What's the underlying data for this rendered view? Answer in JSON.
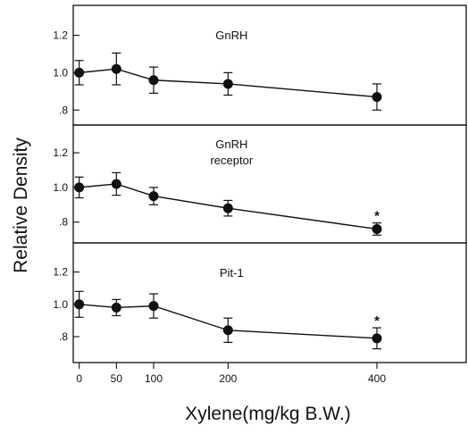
{
  "chart_data": {
    "type": "line",
    "ylabel": "Relative Density",
    "xlabel": "Xylene(mg/kg B.W.)",
    "x": [
      0,
      50,
      100,
      200,
      400
    ],
    "x_ticks": [
      0,
      50,
      100,
      200,
      400
    ],
    "x_tick_labels": [
      "0",
      "50",
      "100",
      "200",
      "400"
    ],
    "xlim": [
      -8,
      520
    ],
    "grid": false,
    "panels": [
      {
        "title": "GnRH",
        "title_line2": "",
        "ylim": [
          0.72,
          1.36
        ],
        "y_ticks": [
          0.8,
          1.0,
          1.2
        ],
        "y_tick_labels": [
          ".8",
          "1.0",
          "1.2"
        ],
        "values": [
          1.0,
          1.02,
          0.96,
          0.94,
          0.87
        ],
        "errors": [
          0.065,
          0.085,
          0.07,
          0.06,
          0.07
        ],
        "significance": [
          "",
          "",
          "",
          "",
          ""
        ]
      },
      {
        "title": "GnRH",
        "title_line2": "receptor",
        "ylim": [
          0.68,
          1.36
        ],
        "y_ticks": [
          0.8,
          1.0,
          1.2
        ],
        "y_tick_labels": [
          ".8",
          "1.0",
          "1.2"
        ],
        "values": [
          1.0,
          1.02,
          0.95,
          0.88,
          0.76
        ],
        "errors": [
          0.06,
          0.065,
          0.05,
          0.045,
          0.035
        ],
        "significance": [
          "",
          "",
          "",
          "",
          "*"
        ]
      },
      {
        "title": "Pit-1",
        "title_line2": "",
        "ylim": [
          0.64,
          1.38
        ],
        "y_ticks": [
          0.8,
          1.0,
          1.2
        ],
        "y_tick_labels": [
          ".8",
          "1.0",
          "1.2"
        ],
        "values": [
          1.0,
          0.98,
          0.99,
          0.84,
          0.79
        ],
        "errors": [
          0.08,
          0.05,
          0.075,
          0.075,
          0.065
        ],
        "significance": [
          "",
          "",
          "",
          "",
          "*"
        ]
      }
    ]
  }
}
